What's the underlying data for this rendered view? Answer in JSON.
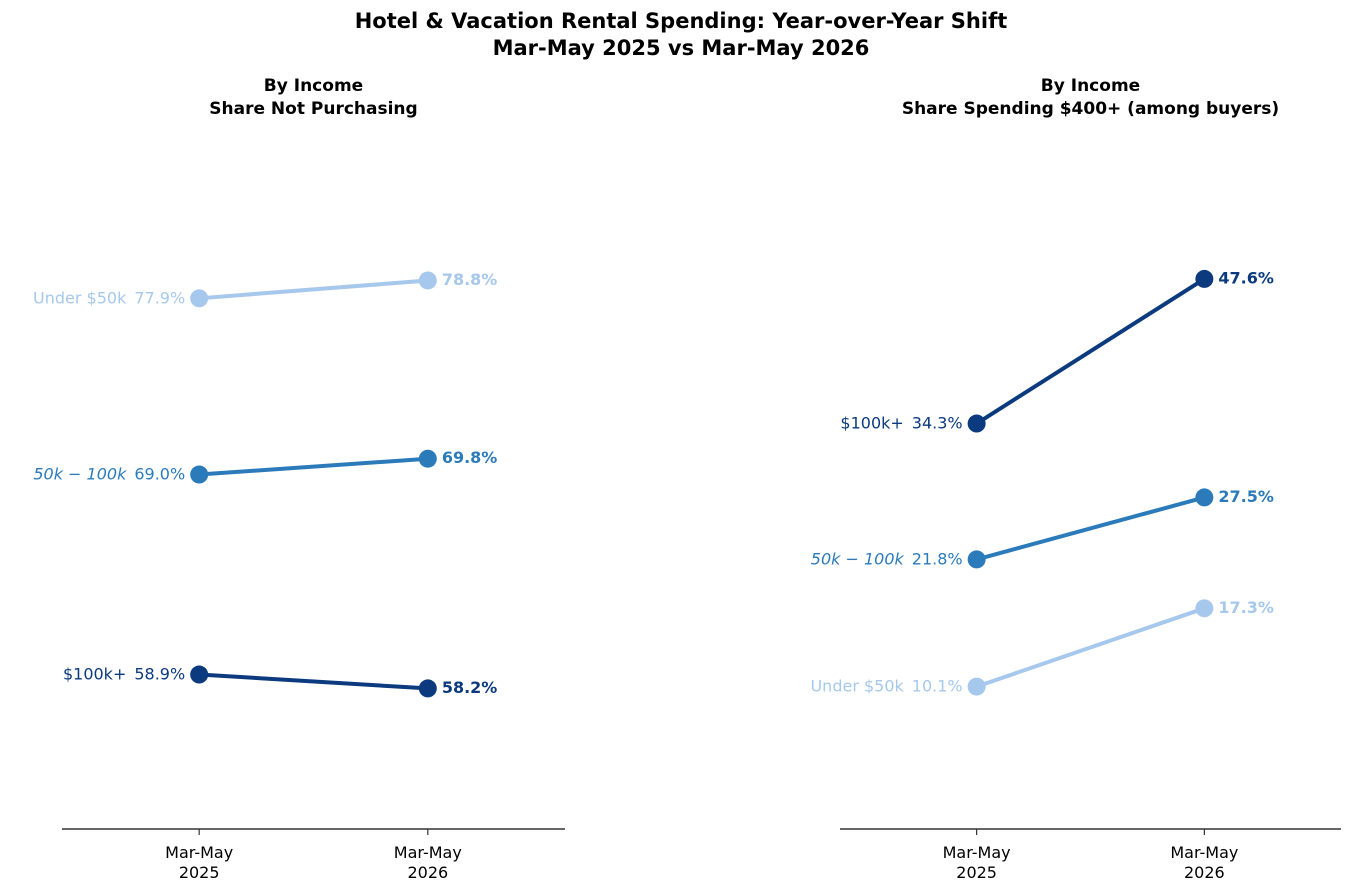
{
  "title": "Hotel & Vacation Rental Spending: Year-over-Year Shift",
  "subtitle": "Mar-May 2025 vs Mar-May 2026",
  "chart_data": [
    {
      "type": "slope",
      "title": "By Income",
      "subtitle": "Share Not Purchasing",
      "categories": [
        "Mar-May\n2025",
        "Mar-May\n2026"
      ],
      "ylim": [
        51.1,
        86.4
      ],
      "series": [
        {
          "name": "Under $50k",
          "color": "#a6c8ec",
          "values": [
            77.9,
            78.8
          ],
          "value_labels": [
            "77.9%",
            "78.8%"
          ]
        },
        {
          "name": "50k − 100k",
          "color": "#2b7bba",
          "values": [
            69.0,
            69.8
          ],
          "value_labels": [
            "69.0%",
            "69.8%"
          ]
        },
        {
          "name": "$100k+",
          "color": "#0b3a7e",
          "values": [
            58.9,
            58.2
          ],
          "value_labels": [
            "58.9%",
            "58.2%"
          ]
        }
      ]
    },
    {
      "type": "slope",
      "title": "By Income",
      "subtitle": "Share Spending $400+ (among buyers)",
      "categories": [
        "Mar-May\n2025",
        "Mar-May\n2026"
      ],
      "ylim": [
        -3.0,
        61.3
      ],
      "series": [
        {
          "name": "Under $50k",
          "color": "#a6c8ec",
          "values": [
            10.1,
            17.3
          ],
          "value_labels": [
            "10.1%",
            "17.3%"
          ]
        },
        {
          "name": "50k − 100k",
          "color": "#2b7bba",
          "values": [
            21.8,
            27.5
          ],
          "value_labels": [
            "21.8%",
            "27.5%"
          ]
        },
        {
          "name": "$100k+",
          "color": "#0b3a7e",
          "values": [
            34.3,
            47.6
          ],
          "value_labels": [
            "34.3%",
            "47.6%"
          ]
        }
      ]
    }
  ]
}
